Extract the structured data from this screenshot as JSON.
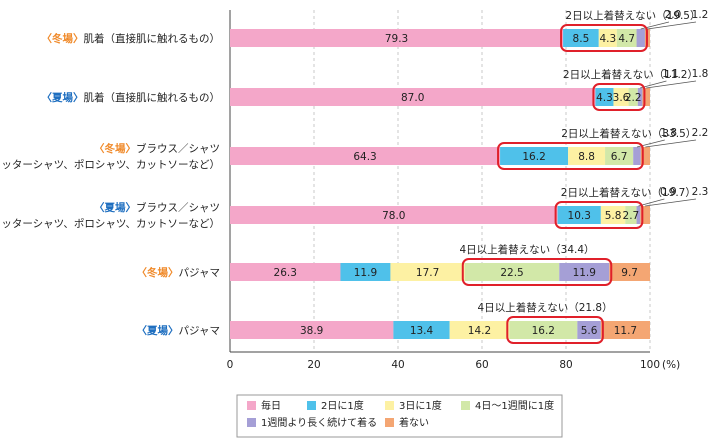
{
  "chart_data": {
    "type": "bar",
    "stacked": true,
    "orientation": "horizontal",
    "xlim": [
      0,
      100
    ],
    "x_ticks": [
      "0",
      "20",
      "40",
      "60",
      "80",
      "100"
    ],
    "x_unit": "(%)",
    "grid": true,
    "legend_position": "bottom",
    "series_names": [
      "毎日",
      "2日に1度",
      "3日に1度",
      "4日〜1週間に1度",
      "1週間より長く続けて着る",
      "着ない"
    ],
    "colors": [
      "#f4a7c9",
      "#4fc1ea",
      "#fdf1a3",
      "#d2e8a8",
      "#a59fd6",
      "#f4a673"
    ],
    "highlight_color": "#e0202a",
    "rows": [
      {
        "season": "〈冬場〉",
        "season_color": "#f08a2a",
        "line1": "肌着（直接肌に触れるもの）",
        "line2": "",
        "values": [
          79.3,
          8.5,
          4.3,
          4.7,
          2.0,
          1.2
        ],
        "labels": [
          "79.3",
          "8.5",
          "4.3",
          "4.7",
          "2.0",
          "1.2"
        ],
        "annotation": "2日以上着替えない（19.5）",
        "boxed_from": 1
      },
      {
        "season": "〈夏場〉",
        "season_color": "#1f6fc0",
        "line1": "肌着（直接肌に触れるもの）",
        "line2": "",
        "values": [
          87.0,
          4.3,
          3.6,
          2.2,
          1.1,
          1.8
        ],
        "labels": [
          "87.0",
          "4.3",
          "3.6",
          "2.2",
          "1.1",
          "1.8"
        ],
        "annotation": "2日以上着替えない（11.2）",
        "boxed_from": 1
      },
      {
        "season": "〈冬場〉",
        "season_color": "#f08a2a",
        "line1": "ブラウス／シャツ",
        "line2": "（カッターシャツ、ポロシャツ、カットソーなど）",
        "values": [
          64.3,
          16.2,
          8.8,
          6.7,
          1.8,
          2.2
        ],
        "labels": [
          "64.3",
          "16.2",
          "8.8",
          "6.7",
          "1.8",
          "2.2"
        ],
        "annotation": "2日以上着替えない（33.5）",
        "boxed_from": 1
      },
      {
        "season": "〈夏場〉",
        "season_color": "#1f6fc0",
        "line1": "ブラウス／シャツ",
        "line2": "（カッターシャツ、ポロシャツ、カットソーなど）",
        "values": [
          78.0,
          10.3,
          5.8,
          2.7,
          0.9,
          2.3
        ],
        "labels": [
          "78.0",
          "10.3",
          "5.8",
          "2.7",
          "0.9",
          "2.3"
        ],
        "annotation": "2日以上着替えない（19.7）",
        "boxed_from": 1
      },
      {
        "season": "〈冬場〉",
        "season_color": "#f08a2a",
        "line1": "パジャマ",
        "line2": "",
        "values": [
          26.3,
          11.9,
          17.7,
          22.5,
          11.9,
          9.7
        ],
        "labels": [
          "26.3",
          "11.9",
          "17.7",
          "22.5",
          "11.9",
          "9.7"
        ],
        "annotation": "4日以上着替えない（34.4）",
        "boxed_from": 3
      },
      {
        "season": "〈夏場〉",
        "season_color": "#1f6fc0",
        "line1": "パジャマ",
        "line2": "",
        "values": [
          38.9,
          13.4,
          14.2,
          16.2,
          5.6,
          11.7
        ],
        "labels": [
          "38.9",
          "13.4",
          "14.2",
          "16.2",
          "5.6",
          "11.7"
        ],
        "annotation": "4日以上着替えない（21.8）",
        "boxed_from": 3
      }
    ]
  }
}
